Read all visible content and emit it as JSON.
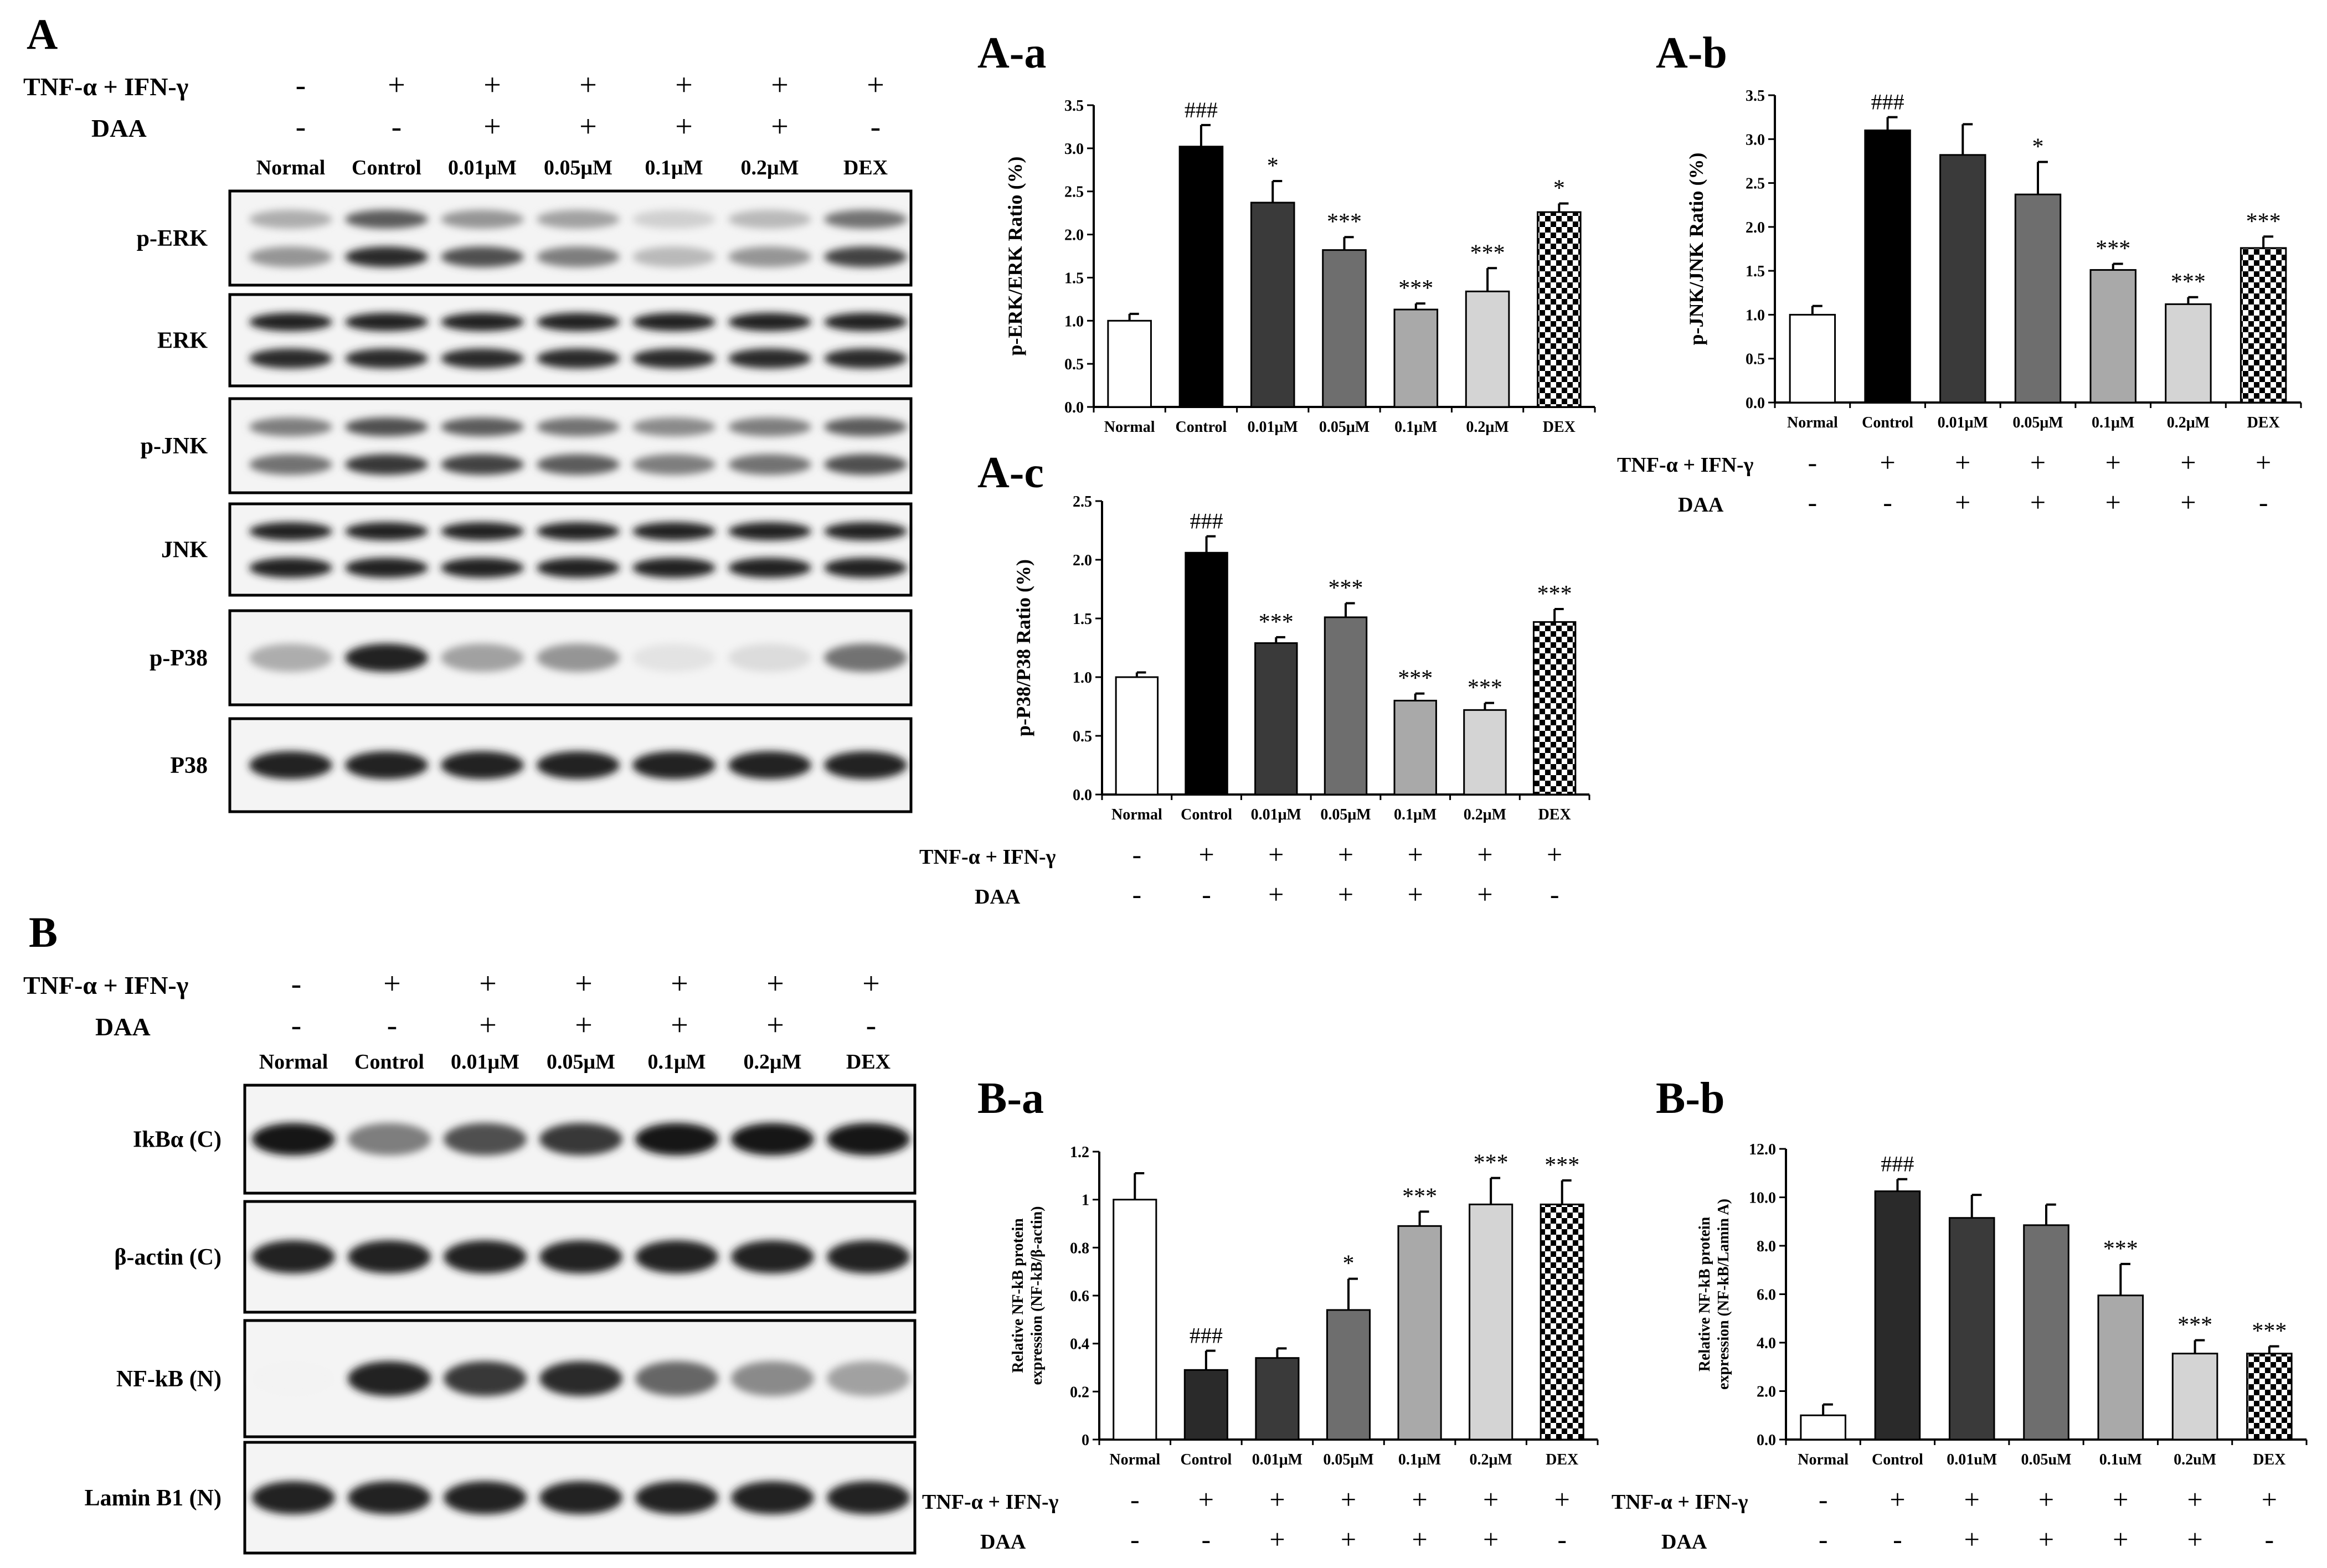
{
  "panel_labels": {
    "A": "A",
    "B": "B",
    "Aa": "A-a",
    "Ab": "A-b",
    "Ac": "A-c",
    "Ba": "B-a",
    "Bb": "B-b"
  },
  "treatment": {
    "tnf_label": "TNF-α + IFN-γ",
    "daa_label": "DAA",
    "tnf_row": [
      "-",
      "+",
      "+",
      "+",
      "+",
      "+",
      "+"
    ],
    "daa_row": [
      "-",
      "-",
      "+",
      "+",
      "+",
      "+",
      "-"
    ]
  },
  "blot_A": {
    "lanes": [
      "Normal",
      "Control",
      "0.01μM",
      "0.05μM",
      "0.1μM",
      "0.2μM",
      "DEX"
    ],
    "bands": [
      {
        "label": "p-ERK",
        "intensity_upper": [
          0.35,
          0.7,
          0.45,
          0.4,
          0.2,
          0.3,
          0.6
        ],
        "intensity_lower": [
          0.45,
          0.9,
          0.75,
          0.55,
          0.3,
          0.45,
          0.8
        ]
      },
      {
        "label": "ERK",
        "intensity_upper": [
          0.95,
          0.95,
          0.95,
          0.95,
          0.95,
          0.95,
          0.95
        ],
        "intensity_lower": [
          0.9,
          0.9,
          0.9,
          0.9,
          0.9,
          0.9,
          0.9
        ]
      },
      {
        "label": "p-JNK",
        "intensity_upper": [
          0.55,
          0.75,
          0.7,
          0.6,
          0.5,
          0.55,
          0.7
        ],
        "intensity_lower": [
          0.6,
          0.85,
          0.8,
          0.7,
          0.55,
          0.6,
          0.75
        ]
      },
      {
        "label": "JNK",
        "intensity_upper": [
          0.95,
          0.95,
          0.95,
          0.95,
          0.95,
          0.95,
          0.95
        ],
        "intensity_lower": [
          0.95,
          0.95,
          0.95,
          0.95,
          0.95,
          0.95,
          0.95
        ]
      },
      {
        "label": "p-P38",
        "intensity_single": [
          0.35,
          0.95,
          0.4,
          0.45,
          0.12,
          0.15,
          0.6
        ]
      },
      {
        "label": "P38",
        "intensity_single": [
          0.95,
          0.95,
          0.95,
          0.95,
          0.95,
          0.95,
          0.95
        ]
      }
    ]
  },
  "blot_B": {
    "lanes": [
      "Normal",
      "Control",
      "0.01μM",
      "0.05μM",
      "0.1μM",
      "0.2μM",
      "DEX"
    ],
    "bands": [
      {
        "label": "IkBα (C)",
        "intensity_single": [
          0.98,
          0.55,
          0.75,
          0.85,
          0.98,
          0.98,
          0.98
        ]
      },
      {
        "label": "β-actin (C)",
        "intensity_single": [
          0.95,
          0.95,
          0.95,
          0.95,
          0.95,
          0.95,
          0.95
        ]
      },
      {
        "label": "NF-kB (N)",
        "intensity_single": [
          0.05,
          0.95,
          0.85,
          0.9,
          0.65,
          0.5,
          0.4
        ]
      },
      {
        "label": "Lamin B1 (N)",
        "intensity_single": [
          0.95,
          0.95,
          0.95,
          0.95,
          0.95,
          0.95,
          0.95
        ]
      }
    ]
  },
  "chart_data": [
    {
      "id": "A-a",
      "type": "bar",
      "categories": [
        "Normal",
        "Control",
        "0.01μM",
        "0.05μM",
        "0.1μM",
        "0.2μM",
        "DEX"
      ],
      "values": [
        1.0,
        3.02,
        2.37,
        1.82,
        1.13,
        1.34,
        2.26
      ],
      "errors": [
        0.08,
        0.25,
        0.25,
        0.15,
        0.07,
        0.27,
        0.1
      ],
      "annotations": [
        "",
        "###",
        "*",
        "***",
        "***",
        "***",
        "*"
      ],
      "ylabel": "p-ERK/ERK Ratio (%)",
      "ylim": [
        0,
        3.5
      ],
      "yticks": [
        "0.0",
        "0.5",
        "1.0",
        "1.5",
        "2.0",
        "2.5",
        "3.0",
        "3.5"
      ],
      "bar_colors": [
        "#ffffff",
        "#000000",
        "#3a3a3a",
        "#6e6e6e",
        "#a9a9a9",
        "#d4d4d4",
        "checker"
      ],
      "show_treatment": false
    },
    {
      "id": "A-b",
      "type": "bar",
      "categories": [
        "Normal",
        "Control",
        "0.01μM",
        "0.05μM",
        "0.1μM",
        "0.2μM",
        "DEX"
      ],
      "values": [
        1.0,
        3.1,
        2.82,
        2.37,
        1.51,
        1.12,
        1.76
      ],
      "errors": [
        0.1,
        0.15,
        0.35,
        0.37,
        0.07,
        0.08,
        0.13
      ],
      "annotations": [
        "",
        "###",
        "",
        "*",
        "***",
        "***",
        "***"
      ],
      "ylabel": "p-JNK/JNK Ratio (%)",
      "ylim": [
        0,
        3.5
      ],
      "yticks": [
        "0.0",
        "0.5",
        "1.0",
        "1.5",
        "2.0",
        "2.5",
        "3.0",
        "3.5"
      ],
      "bar_colors": [
        "#ffffff",
        "#000000",
        "#3a3a3a",
        "#6e6e6e",
        "#a9a9a9",
        "#d4d4d4",
        "checker"
      ],
      "show_treatment": true
    },
    {
      "id": "A-c",
      "type": "bar",
      "categories": [
        "Normal",
        "Control",
        "0.01μM",
        "0.05μM",
        "0.1μM",
        "0.2μM",
        "DEX"
      ],
      "values": [
        1.0,
        2.06,
        1.29,
        1.51,
        0.8,
        0.72,
        1.47
      ],
      "errors": [
        0.04,
        0.14,
        0.05,
        0.12,
        0.06,
        0.06,
        0.11
      ],
      "annotations": [
        "",
        "###",
        "***",
        "***",
        "***",
        "***",
        "***"
      ],
      "ylabel": "p-P38/P38 Ratio (%)",
      "ylim": [
        0,
        2.5
      ],
      "yticks": [
        "0.0",
        "0.5",
        "1.0",
        "1.5",
        "2.0",
        "2.5"
      ],
      "bar_colors": [
        "#ffffff",
        "#000000",
        "#3a3a3a",
        "#6e6e6e",
        "#a9a9a9",
        "#d4d4d4",
        "checker"
      ],
      "show_treatment": true
    },
    {
      "id": "B-a",
      "type": "bar",
      "categories": [
        "Normal",
        "Control",
        "0.01μM",
        "0.05μM",
        "0.1μM",
        "0.2μM",
        "DEX"
      ],
      "values": [
        1.0,
        0.29,
        0.34,
        0.54,
        0.89,
        0.98,
        0.98
      ],
      "errors": [
        0.11,
        0.08,
        0.04,
        0.13,
        0.06,
        0.11,
        0.1
      ],
      "annotations": [
        "",
        "###",
        "",
        "*",
        "***",
        "***",
        "***"
      ],
      "ylabel": "Relative NF-kB protein expression (NF-kB/β-actin)",
      "ylabel_lines": [
        "Relative NF-kB protein",
        "expression (NF-kB/β-actin)"
      ],
      "ylim": [
        0,
        1.2
      ],
      "yticks": [
        "0",
        "0.2",
        "0.4",
        "0.6",
        "0.8",
        "1",
        "1.2"
      ],
      "bar_colors": [
        "#ffffff",
        "#2a2a2a",
        "#3a3a3a",
        "#6e6e6e",
        "#a9a9a9",
        "#d4d4d4",
        "checker"
      ],
      "show_treatment": true
    },
    {
      "id": "B-b",
      "type": "bar",
      "categories": [
        "Normal",
        "Control",
        "0.01uM",
        "0.05uM",
        "0.1uM",
        "0.2uM",
        "DEX"
      ],
      "values": [
        1.0,
        10.25,
        9.15,
        8.85,
        5.95,
        3.55,
        3.55
      ],
      "errors": [
        0.45,
        0.5,
        0.95,
        0.85,
        1.3,
        0.55,
        0.3
      ],
      "annotations": [
        "",
        "###",
        "",
        "",
        "***",
        "***",
        "***"
      ],
      "ylabel": "Relative NF-kB protein expression (NF-kB/Lamin A)",
      "ylabel_lines": [
        "Relative NF-kB protein",
        "expression (NF-kB/Lamin A)"
      ],
      "ylim": [
        0,
        12
      ],
      "yticks": [
        "0.0",
        "2.0",
        "4.0",
        "6.0",
        "8.0",
        "10.0",
        "12.0"
      ],
      "bar_colors": [
        "#ffffff",
        "#2a2a2a",
        "#3a3a3a",
        "#6e6e6e",
        "#a9a9a9",
        "#d4d4d4",
        "checker"
      ],
      "show_treatment": true
    }
  ]
}
